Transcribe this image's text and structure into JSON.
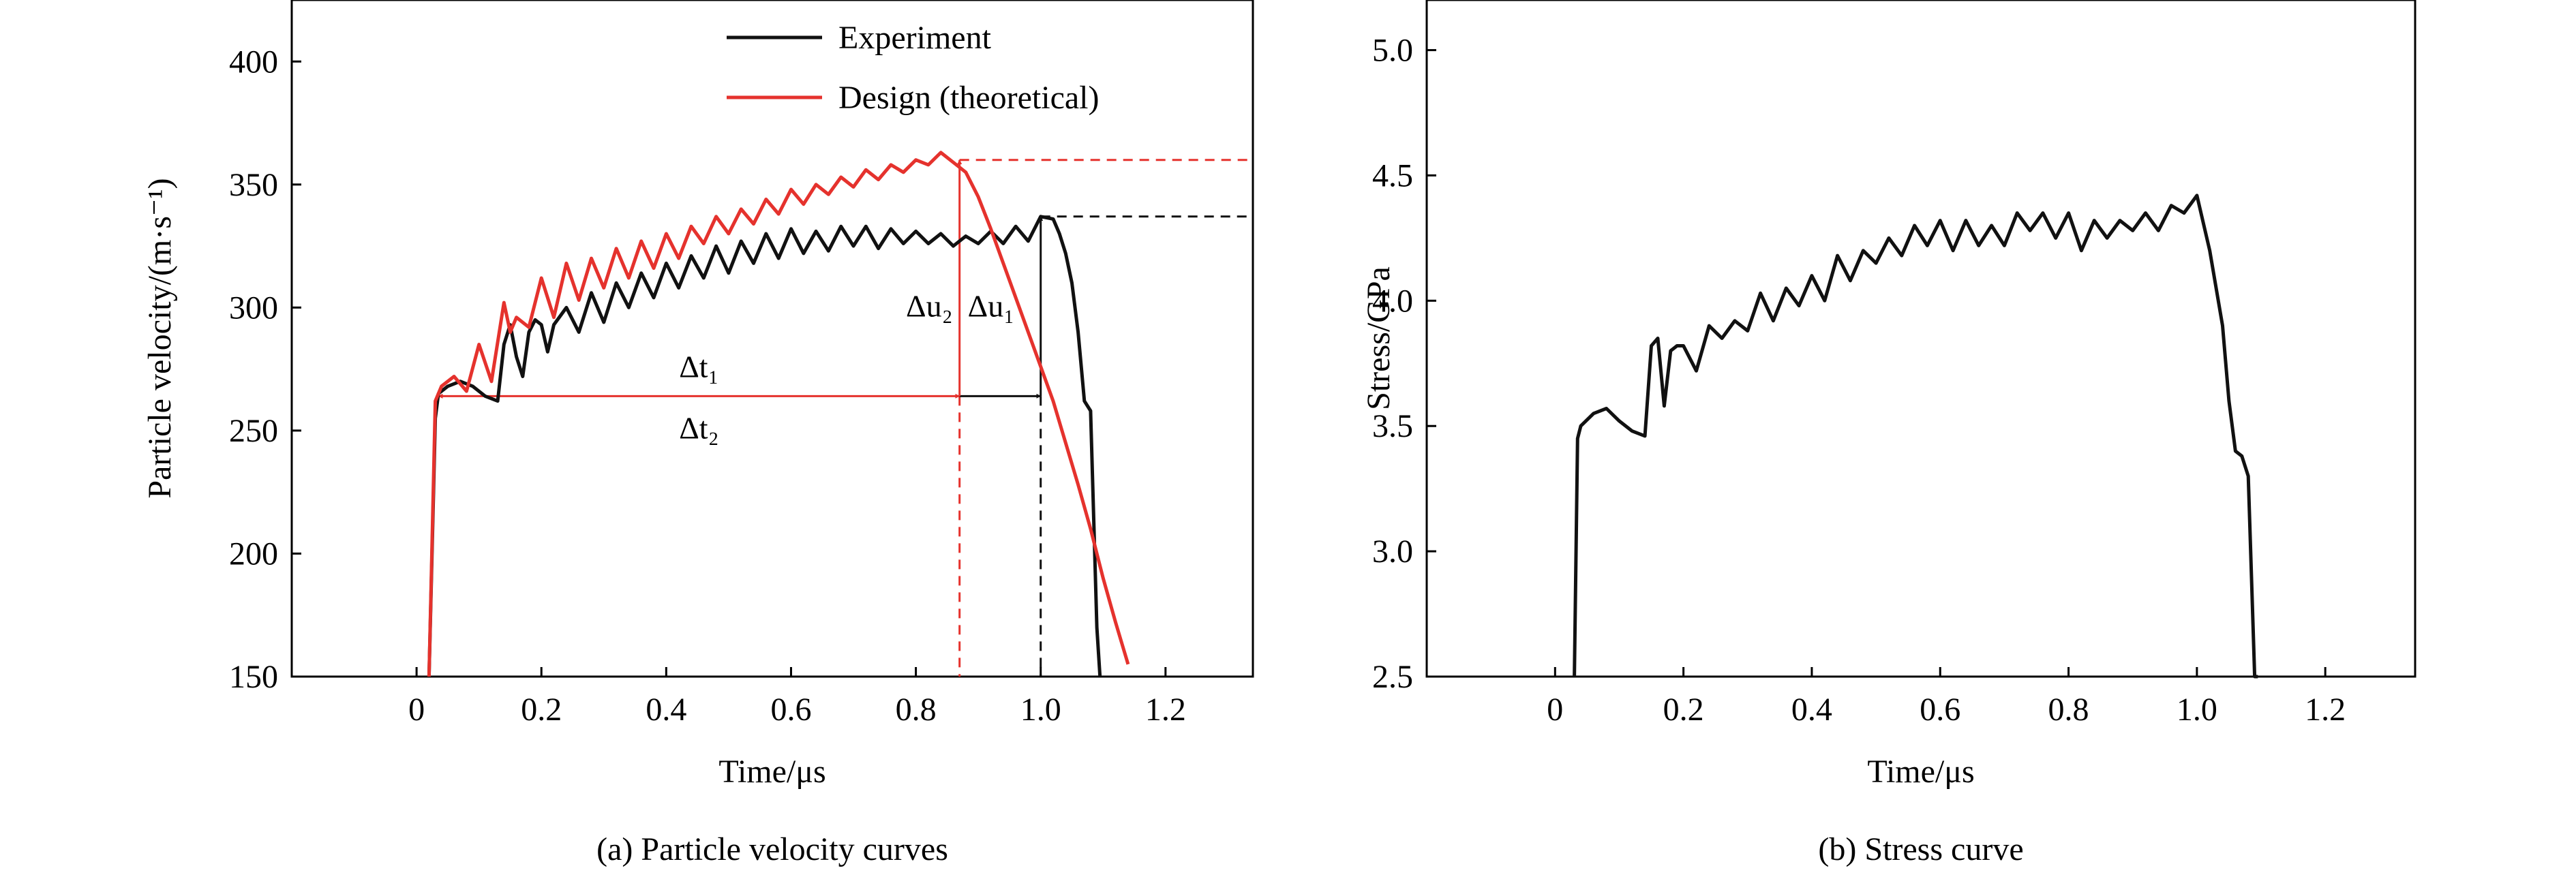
{
  "chart_data": [
    {
      "type": "line",
      "caption": "(a) Particle velocity curves",
      "xlabel": "Time/μs",
      "ylabel": "Particle velocity/(m·s⁻¹)",
      "xlim": [
        -0.2,
        1.34
      ],
      "ylim": [
        150,
        425
      ],
      "xticks": [
        0,
        0.2,
        0.4,
        0.6,
        0.8,
        1.0,
        1.2
      ],
      "xtick_labels": [
        "0",
        "0.2",
        "0.4",
        "0.6",
        "0.8",
        "1.0",
        "1.2"
      ],
      "yticks": [
        150,
        200,
        250,
        300,
        350,
        400
      ],
      "ytick_labels": [
        "150",
        "200",
        "250",
        "300",
        "350",
        "400"
      ],
      "grid": false,
      "legend_position": "top-right",
      "series": [
        {
          "name": "Experiment",
          "color": "#111111",
          "x": [
            0.02,
            0.03,
            0.035,
            0.05,
            0.07,
            0.09,
            0.11,
            0.13,
            0.14,
            0.15,
            0.16,
            0.17,
            0.18,
            0.19,
            0.2,
            0.21,
            0.22,
            0.24,
            0.26,
            0.28,
            0.3,
            0.32,
            0.34,
            0.36,
            0.38,
            0.4,
            0.42,
            0.44,
            0.46,
            0.48,
            0.5,
            0.52,
            0.54,
            0.56,
            0.58,
            0.6,
            0.62,
            0.64,
            0.66,
            0.68,
            0.7,
            0.72,
            0.74,
            0.76,
            0.78,
            0.8,
            0.82,
            0.84,
            0.86,
            0.88,
            0.9,
            0.92,
            0.94,
            0.96,
            0.98,
            1.0,
            1.02,
            1.03,
            1.04,
            1.05,
            1.06,
            1.07,
            1.08,
            1.09,
            1.095
          ],
          "y": [
            150,
            255,
            265,
            268,
            270,
            268,
            264,
            262,
            285,
            293,
            280,
            272,
            290,
            295,
            293,
            282,
            293,
            300,
            290,
            306,
            294,
            310,
            300,
            314,
            304,
            318,
            308,
            321,
            312,
            325,
            314,
            327,
            318,
            330,
            320,
            332,
            322,
            331,
            323,
            333,
            325,
            333,
            324,
            332,
            326,
            331,
            326,
            330,
            325,
            329,
            326,
            331,
            326,
            333,
            327,
            337,
            336,
            330,
            322,
            310,
            290,
            262,
            258,
            170,
            150
          ]
        },
        {
          "name": "Design (theoretical)",
          "color": "#e5322d",
          "x": [
            0.02,
            0.03,
            0.04,
            0.06,
            0.08,
            0.1,
            0.12,
            0.14,
            0.15,
            0.16,
            0.18,
            0.2,
            0.22,
            0.24,
            0.26,
            0.28,
            0.3,
            0.32,
            0.34,
            0.36,
            0.38,
            0.4,
            0.42,
            0.44,
            0.46,
            0.48,
            0.5,
            0.52,
            0.54,
            0.56,
            0.58,
            0.6,
            0.62,
            0.64,
            0.66,
            0.68,
            0.7,
            0.72,
            0.74,
            0.76,
            0.78,
            0.8,
            0.82,
            0.84,
            0.86,
            0.88,
            0.9,
            0.92,
            0.94,
            0.96,
            0.98,
            1.0,
            1.02,
            1.04,
            1.06,
            1.08,
            1.1,
            1.12,
            1.14
          ],
          "y": [
            150,
            262,
            268,
            272,
            266,
            285,
            270,
            302,
            290,
            296,
            292,
            312,
            296,
            318,
            303,
            320,
            308,
            324,
            312,
            327,
            316,
            330,
            320,
            333,
            326,
            337,
            330,
            340,
            334,
            344,
            338,
            348,
            342,
            350,
            346,
            353,
            349,
            356,
            352,
            358,
            355,
            360,
            358,
            363,
            359,
            355,
            345,
            332,
            318,
            304,
            290,
            276,
            262,
            245,
            228,
            210,
            190,
            172,
            155
          ]
        }
      ],
      "annotations": [
        {
          "text": "Δt₁",
          "color": "#111111"
        },
        {
          "text": "Δt₂",
          "color": "#e5322d"
        },
        {
          "text": "Δu₁",
          "color": "#111111"
        },
        {
          "text": "Δu₂",
          "color": "#e5322d"
        }
      ],
      "reference_lines": {
        "u1_level": 337,
        "u2_level": 360,
        "t1_end": 1.0,
        "t2_end": 0.87,
        "interval_start": 0.035,
        "interval_level": 264
      }
    },
    {
      "type": "line",
      "caption": "(b) Stress curve",
      "xlabel": "Time/μs",
      "ylabel": "Stress/GPa",
      "xlim": [
        -0.2,
        1.34
      ],
      "ylim": [
        2.5,
        5.2
      ],
      "xticks": [
        0,
        0.2,
        0.4,
        0.6,
        0.8,
        1.0,
        1.2
      ],
      "xtick_labels": [
        "0",
        "0.2",
        "0.4",
        "0.6",
        "0.8",
        "1.0",
        "1.2"
      ],
      "yticks": [
        2.5,
        3.0,
        3.5,
        4.0,
        4.5,
        5.0
      ],
      "ytick_labels": [
        "2.5",
        "3.0",
        "3.5",
        "4.0",
        "4.5",
        "5.0"
      ],
      "grid": false,
      "series": [
        {
          "color": "#111111",
          "x": [
            0.03,
            0.035,
            0.04,
            0.06,
            0.08,
            0.1,
            0.12,
            0.14,
            0.15,
            0.16,
            0.17,
            0.18,
            0.19,
            0.2,
            0.22,
            0.24,
            0.26,
            0.28,
            0.3,
            0.32,
            0.34,
            0.36,
            0.38,
            0.4,
            0.42,
            0.44,
            0.46,
            0.48,
            0.5,
            0.52,
            0.54,
            0.56,
            0.58,
            0.6,
            0.62,
            0.64,
            0.66,
            0.68,
            0.7,
            0.72,
            0.74,
            0.76,
            0.78,
            0.8,
            0.82,
            0.84,
            0.86,
            0.88,
            0.9,
            0.92,
            0.94,
            0.96,
            0.98,
            1.0,
            1.02,
            1.04,
            1.05,
            1.06,
            1.07,
            1.08,
            1.09,
            1.095
          ],
          "y": [
            2.5,
            3.45,
            3.5,
            3.55,
            3.57,
            3.52,
            3.48,
            3.46,
            3.82,
            3.85,
            3.58,
            3.8,
            3.82,
            3.82,
            3.72,
            3.9,
            3.85,
            3.92,
            3.88,
            4.03,
            3.92,
            4.05,
            3.98,
            4.1,
            4.0,
            4.18,
            4.08,
            4.2,
            4.15,
            4.25,
            4.18,
            4.3,
            4.22,
            4.32,
            4.2,
            4.32,
            4.22,
            4.3,
            4.22,
            4.35,
            4.28,
            4.35,
            4.25,
            4.35,
            4.2,
            4.32,
            4.25,
            4.32,
            4.28,
            4.35,
            4.28,
            4.38,
            4.35,
            4.42,
            4.2,
            3.9,
            3.6,
            3.4,
            3.38,
            3.3,
            2.5,
            2.5
          ]
        }
      ]
    }
  ]
}
